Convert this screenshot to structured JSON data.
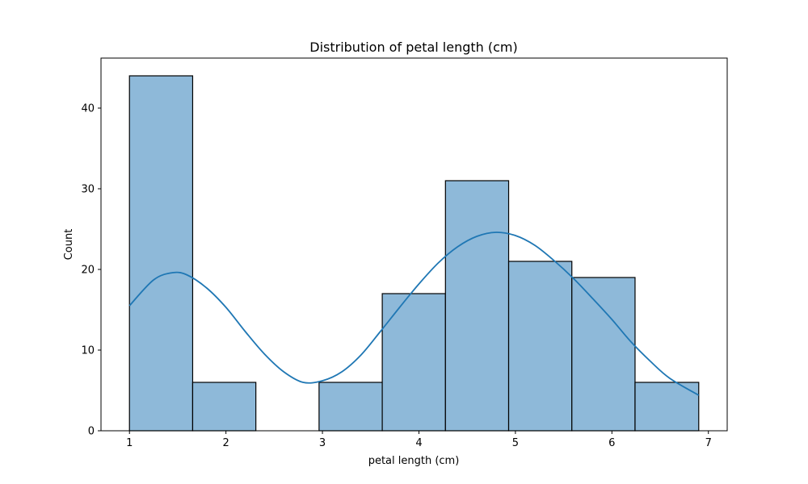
{
  "chart_data": {
    "type": "bar",
    "title": "Distribution of petal length (cm)",
    "xlabel": "petal length (cm)",
    "ylabel": "Count",
    "xlim": [
      0.705,
      7.195
    ],
    "ylim": [
      0,
      46.2
    ],
    "x_ticks": [
      1,
      2,
      3,
      4,
      5,
      6,
      7
    ],
    "y_ticks": [
      0,
      10,
      20,
      30,
      40
    ],
    "bins": [
      {
        "x0": 1.0,
        "x1": 1.655,
        "count": 44
      },
      {
        "x0": 1.655,
        "x1": 2.31,
        "count": 6
      },
      {
        "x0": 2.31,
        "x1": 2.965,
        "count": 0
      },
      {
        "x0": 2.965,
        "x1": 3.62,
        "count": 6
      },
      {
        "x0": 3.62,
        "x1": 4.275,
        "count": 17
      },
      {
        "x0": 4.275,
        "x1": 4.93,
        "count": 31
      },
      {
        "x0": 4.93,
        "x1": 5.585,
        "count": 21
      },
      {
        "x0": 5.585,
        "x1": 6.24,
        "count": 19
      },
      {
        "x0": 6.24,
        "x1": 6.9,
        "count": 6
      }
    ],
    "kde": {
      "x": [
        1.0,
        1.25,
        1.45,
        1.6,
        1.8,
        2.0,
        2.2,
        2.4,
        2.6,
        2.8,
        3.0,
        3.2,
        3.4,
        3.6,
        3.8,
        4.0,
        4.2,
        4.4,
        4.6,
        4.8,
        5.0,
        5.2,
        5.4,
        5.6,
        5.8,
        6.0,
        6.2,
        6.4,
        6.6,
        6.9
      ],
      "y": [
        15.5,
        18.7,
        19.6,
        19.3,
        17.7,
        15.3,
        12.3,
        9.5,
        7.3,
        6.0,
        6.2,
        7.3,
        9.4,
        12.3,
        15.3,
        18.2,
        20.8,
        22.8,
        24.1,
        24.6,
        24.2,
        23.0,
        21.1,
        18.9,
        16.4,
        13.8,
        11.0,
        8.6,
        6.5,
        4.4
      ]
    },
    "bar_fill": "#8eb9d9",
    "bar_stroke": "#000000",
    "kde_color": "#1f77b4",
    "grid": false,
    "legend": "none"
  }
}
